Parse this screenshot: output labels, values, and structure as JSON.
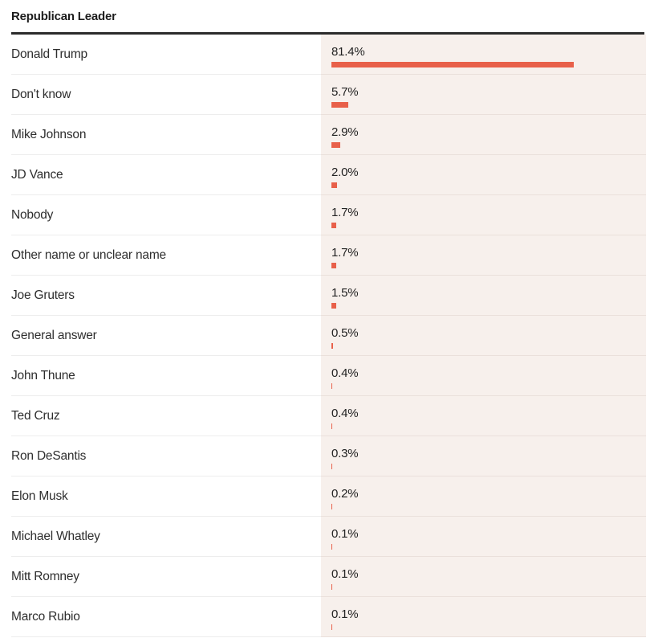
{
  "title": "Republican Leader",
  "colors": {
    "bar": "#e8604a",
    "panel_bg": "#f7f0ec",
    "rule": "#2b2b2b"
  },
  "chart_data": {
    "type": "bar",
    "orientation": "horizontal",
    "title": "Republican Leader",
    "unit": "%",
    "xlim": [
      0,
      100
    ],
    "grid": false,
    "legend": false,
    "categories": [
      "Donald Trump",
      "Don't know",
      "Mike Johnson",
      "JD Vance",
      "Nobody",
      "Other name or unclear name",
      "Joe Gruters",
      "General answer",
      "John Thune",
      "Ted Cruz",
      "Ron DeSantis",
      "Elon Musk",
      "Michael Whatley",
      "Mitt Romney",
      "Marco Rubio"
    ],
    "values": [
      81.4,
      5.7,
      2.9,
      2.0,
      1.7,
      1.7,
      1.5,
      0.5,
      0.4,
      0.4,
      0.3,
      0.2,
      0.1,
      0.1,
      0.1
    ],
    "value_labels": [
      "81.4%",
      "5.7%",
      "2.9%",
      "2.0%",
      "1.7%",
      "1.7%",
      "1.5%",
      "0.5%",
      "0.4%",
      "0.4%",
      "0.3%",
      "0.2%",
      "0.1%",
      "0.1%",
      "0.1%"
    ]
  }
}
